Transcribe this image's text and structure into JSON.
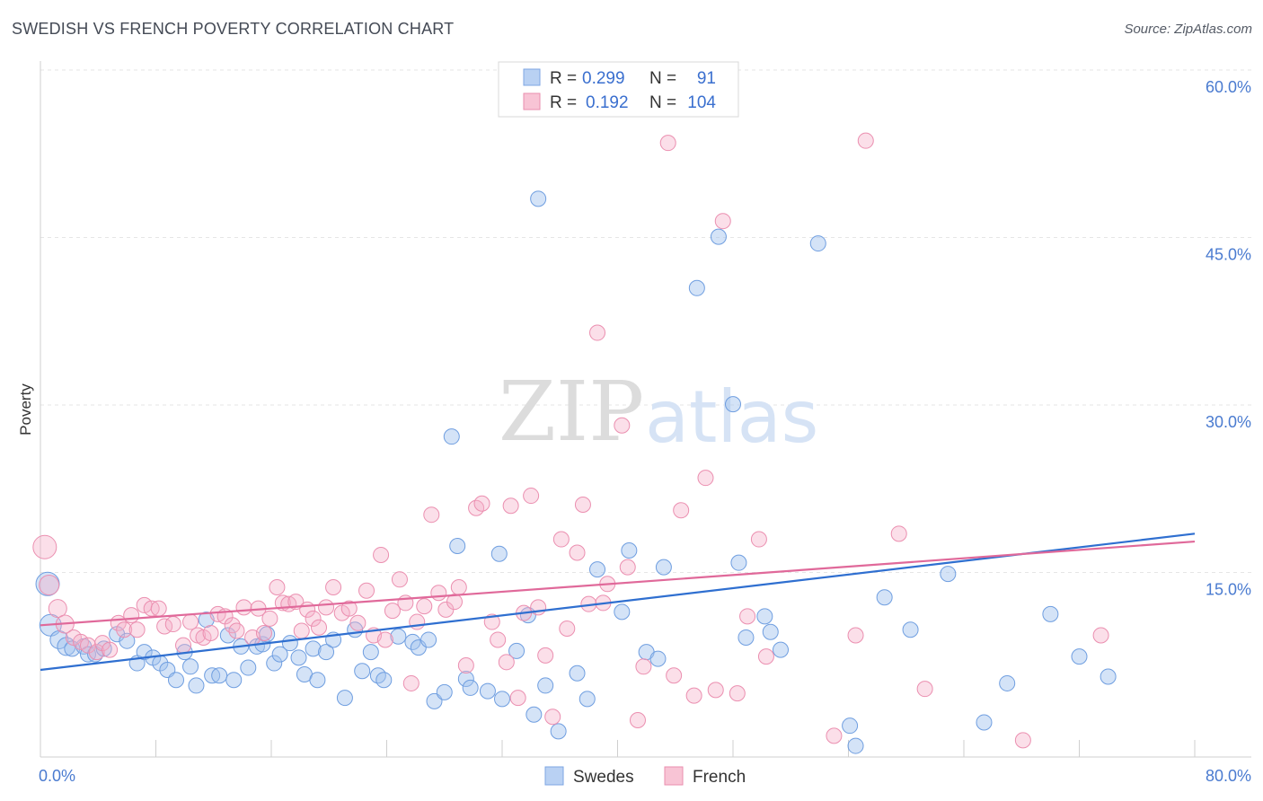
{
  "title": "SWEDISH VS FRENCH POVERTY CORRELATION CHART",
  "source": "Source: ZipAtlas.com",
  "watermark": {
    "part1": "ZIP",
    "part2": "atlas"
  },
  "legend": {
    "rows": [
      {
        "r_label": "R =",
        "r_value": "0.299",
        "n_label": "N =",
        "n_value": "91"
      },
      {
        "r_label": "R =",
        "r_value": "0.192",
        "n_label": "N =",
        "n_value": "104"
      }
    ]
  },
  "chart_data": {
    "type": "scatter",
    "ylabel": "Poverty",
    "xlim": [
      0,
      80
    ],
    "ylim": [
      0,
      60
    ],
    "x_tick_labels": [
      "0.0%",
      "80.0%"
    ],
    "y_ticks": [
      15,
      30,
      45,
      60
    ],
    "y_tick_labels": [
      "15.0%",
      "30.0%",
      "45.0%",
      "60.0%"
    ],
    "grid": true,
    "colors": {
      "Swedes": "#4a86d8",
      "French": "#e8709a"
    },
    "series": [
      {
        "name": "Swedes",
        "r": 0.299,
        "n": 91,
        "trend": [
          [
            0,
            7.8
          ],
          [
            80,
            20.0
          ]
        ],
        "points": [
          [
            0.5,
            15.5
          ],
          [
            0.7,
            11.8
          ],
          [
            1.3,
            10.5
          ],
          [
            1.8,
            9.9
          ],
          [
            2.2,
            9.7
          ],
          [
            3.0,
            9.9
          ],
          [
            3.3,
            9.2
          ],
          [
            3.8,
            9.2
          ],
          [
            4.4,
            9.7
          ],
          [
            5.3,
            11.0
          ],
          [
            6.0,
            10.4
          ],
          [
            6.7,
            8.4
          ],
          [
            7.2,
            9.4
          ],
          [
            7.8,
            8.9
          ],
          [
            8.3,
            8.4
          ],
          [
            8.8,
            7.8
          ],
          [
            9.4,
            6.9
          ],
          [
            10.0,
            9.4
          ],
          [
            10.4,
            8.1
          ],
          [
            10.8,
            6.4
          ],
          [
            11.5,
            12.3
          ],
          [
            11.9,
            7.3
          ],
          [
            12.4,
            7.3
          ],
          [
            13.0,
            10.9
          ],
          [
            13.4,
            6.9
          ],
          [
            13.9,
            9.9
          ],
          [
            14.4,
            8.0
          ],
          [
            15.0,
            9.9
          ],
          [
            15.4,
            10.1
          ],
          [
            15.7,
            11.0
          ],
          [
            16.2,
            8.4
          ],
          [
            16.6,
            9.2
          ],
          [
            17.3,
            10.2
          ],
          [
            17.9,
            8.9
          ],
          [
            18.3,
            7.4
          ],
          [
            18.9,
            9.7
          ],
          [
            19.2,
            6.9
          ],
          [
            19.8,
            9.4
          ],
          [
            20.3,
            10.5
          ],
          [
            21.1,
            5.3
          ],
          [
            21.8,
            11.4
          ],
          [
            22.9,
            9.4
          ],
          [
            22.3,
            7.7
          ],
          [
            23.4,
            7.3
          ],
          [
            23.8,
            6.9
          ],
          [
            24.8,
            10.8
          ],
          [
            25.8,
            10.3
          ],
          [
            26.2,
            9.8
          ],
          [
            26.9,
            10.5
          ],
          [
            27.3,
            5.0
          ],
          [
            28.0,
            5.8
          ],
          [
            28.5,
            28.7
          ],
          [
            28.9,
            18.9
          ],
          [
            29.5,
            7.0
          ],
          [
            29.8,
            6.2
          ],
          [
            31.0,
            5.9
          ],
          [
            31.8,
            18.2
          ],
          [
            32.0,
            5.2
          ],
          [
            33.0,
            9.5
          ],
          [
            33.8,
            12.7
          ],
          [
            34.2,
            3.8
          ],
          [
            34.5,
            50.0
          ],
          [
            35.0,
            6.4
          ],
          [
            35.9,
            2.3
          ],
          [
            37.2,
            7.5
          ],
          [
            37.9,
            5.2
          ],
          [
            38.6,
            16.8
          ],
          [
            40.3,
            13.0
          ],
          [
            40.8,
            18.5
          ],
          [
            42.0,
            9.4
          ],
          [
            42.8,
            8.8
          ],
          [
            43.2,
            17.0
          ],
          [
            45.5,
            42.0
          ],
          [
            47.0,
            46.6
          ],
          [
            48.0,
            31.6
          ],
          [
            48.4,
            17.4
          ],
          [
            48.9,
            10.7
          ],
          [
            50.2,
            12.6
          ],
          [
            50.6,
            11.2
          ],
          [
            51.3,
            9.6
          ],
          [
            53.9,
            46.0
          ],
          [
            56.1,
            2.8
          ],
          [
            56.5,
            1.0
          ],
          [
            58.5,
            14.3
          ],
          [
            60.3,
            11.4
          ],
          [
            62.9,
            16.4
          ],
          [
            65.4,
            3.1
          ],
          [
            67.0,
            6.6
          ],
          [
            70.0,
            12.8
          ],
          [
            72.0,
            9.0
          ],
          [
            74.0,
            7.2
          ]
        ]
      },
      {
        "name": "French",
        "r": 0.192,
        "n": 104,
        "trend": [
          [
            0,
            11.8
          ],
          [
            80,
            19.3
          ]
        ],
        "points": [
          [
            0.3,
            18.8
          ],
          [
            0.6,
            15.4
          ],
          [
            1.2,
            13.3
          ],
          [
            1.7,
            11.9
          ],
          [
            2.3,
            10.7
          ],
          [
            2.8,
            10.3
          ],
          [
            3.3,
            10.0
          ],
          [
            3.9,
            9.4
          ],
          [
            4.3,
            10.2
          ],
          [
            4.8,
            9.6
          ],
          [
            5.4,
            12.0
          ],
          [
            5.8,
            11.4
          ],
          [
            6.3,
            12.7
          ],
          [
            6.7,
            11.4
          ],
          [
            7.2,
            13.6
          ],
          [
            7.7,
            13.3
          ],
          [
            8.2,
            13.3
          ],
          [
            8.6,
            11.7
          ],
          [
            9.2,
            11.9
          ],
          [
            9.9,
            10.0
          ],
          [
            10.4,
            12.1
          ],
          [
            10.9,
            10.9
          ],
          [
            11.3,
            10.7
          ],
          [
            11.8,
            11.1
          ],
          [
            12.3,
            12.8
          ],
          [
            12.8,
            12.6
          ],
          [
            13.3,
            11.8
          ],
          [
            13.6,
            11.3
          ],
          [
            14.1,
            13.4
          ],
          [
            14.7,
            10.7
          ],
          [
            15.1,
            13.3
          ],
          [
            15.5,
            11.1
          ],
          [
            15.9,
            12.4
          ],
          [
            16.4,
            15.2
          ],
          [
            16.8,
            13.8
          ],
          [
            17.2,
            13.7
          ],
          [
            17.7,
            13.9
          ],
          [
            18.1,
            11.3
          ],
          [
            18.5,
            13.2
          ],
          [
            18.9,
            12.4
          ],
          [
            19.3,
            11.6
          ],
          [
            19.8,
            13.4
          ],
          [
            20.3,
            15.2
          ],
          [
            20.9,
            12.9
          ],
          [
            21.4,
            13.3
          ],
          [
            22.0,
            12.0
          ],
          [
            22.6,
            14.9
          ],
          [
            23.1,
            10.9
          ],
          [
            23.6,
            18.1
          ],
          [
            23.9,
            10.5
          ],
          [
            24.4,
            13.1
          ],
          [
            24.9,
            15.9
          ],
          [
            25.3,
            13.8
          ],
          [
            25.7,
            6.6
          ],
          [
            26.1,
            12.1
          ],
          [
            26.6,
            13.5
          ],
          [
            27.1,
            21.7
          ],
          [
            27.6,
            14.7
          ],
          [
            28.1,
            13.2
          ],
          [
            28.7,
            13.9
          ],
          [
            29.0,
            15.2
          ],
          [
            29.5,
            8.2
          ],
          [
            30.2,
            22.3
          ],
          [
            30.6,
            22.7
          ],
          [
            31.3,
            12.1
          ],
          [
            31.7,
            10.5
          ],
          [
            32.3,
            8.5
          ],
          [
            32.6,
            22.5
          ],
          [
            33.1,
            5.3
          ],
          [
            33.5,
            12.9
          ],
          [
            34.0,
            23.4
          ],
          [
            34.5,
            13.4
          ],
          [
            35.0,
            9.1
          ],
          [
            35.5,
            3.6
          ],
          [
            36.1,
            19.5
          ],
          [
            36.5,
            11.5
          ],
          [
            37.2,
            18.3
          ],
          [
            37.6,
            22.6
          ],
          [
            38.0,
            13.7
          ],
          [
            38.6,
            38.0
          ],
          [
            39.0,
            13.8
          ],
          [
            39.3,
            15.5
          ],
          [
            40.3,
            29.7
          ],
          [
            40.7,
            17.0
          ],
          [
            41.4,
            3.3
          ],
          [
            41.8,
            8.1
          ],
          [
            43.5,
            55.0
          ],
          [
            43.9,
            7.3
          ],
          [
            44.4,
            22.1
          ],
          [
            45.3,
            5.5
          ],
          [
            46.1,
            25.0
          ],
          [
            46.8,
            6.0
          ],
          [
            47.3,
            48.0
          ],
          [
            48.3,
            5.7
          ],
          [
            49.0,
            12.6
          ],
          [
            49.8,
            19.5
          ],
          [
            50.3,
            9.0
          ],
          [
            55.0,
            1.9
          ],
          [
            56.5,
            10.9
          ],
          [
            57.2,
            55.2
          ],
          [
            59.5,
            20.0
          ],
          [
            61.3,
            6.1
          ],
          [
            68.1,
            1.5
          ],
          [
            73.5,
            10.9
          ]
        ]
      }
    ]
  }
}
